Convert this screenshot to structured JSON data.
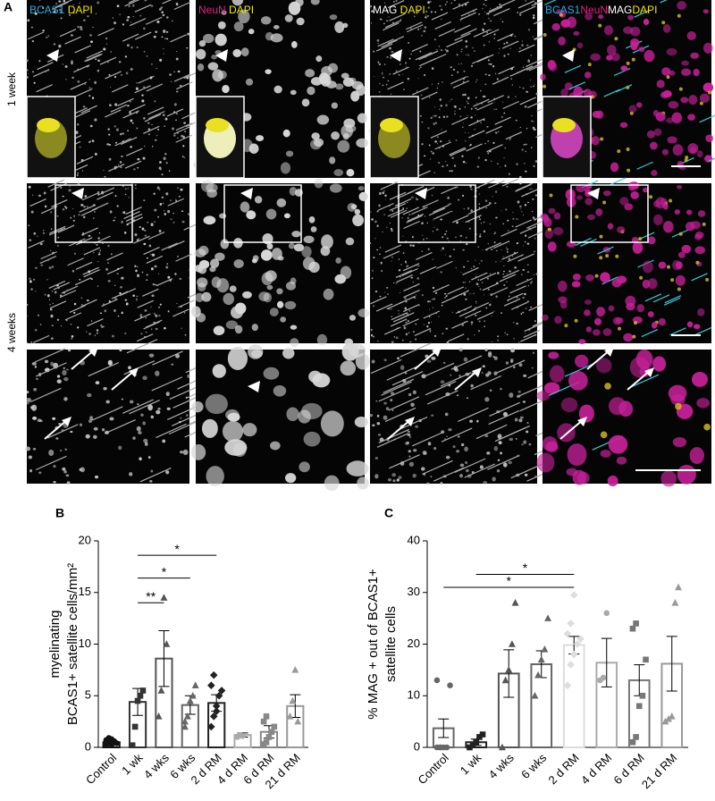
{
  "panel_a": {
    "letter": "A",
    "row_labels": [
      "1 week",
      "4 weeks"
    ],
    "columns": [
      [
        {
          "text": "BCAS1",
          "color": "#29abe2"
        },
        {
          "text": " DAPI",
          "color": "#f2e600"
        }
      ],
      [
        {
          "text": "NeuN",
          "color": "#e0207f"
        },
        {
          "text": " DAPI",
          "color": "#f2e600"
        }
      ],
      [
        {
          "text": "MAG",
          "color": "#ffffff"
        },
        {
          "text": " DAPI",
          "color": "#f2e600"
        }
      ],
      [
        {
          "text": "BCAS1",
          "color": "#29abe2"
        },
        {
          "text": "NeuN",
          "color": "#e0207f"
        },
        {
          "text": "MAG",
          "color": "#ffffff"
        },
        {
          "text": "DAPI",
          "color": "#f2e600"
        }
      ]
    ]
  },
  "chart_data": [
    {
      "type": "bar",
      "letter": "B",
      "ylabel": [
        "myelinating",
        "BCAS1+ satellite cells/mm²"
      ],
      "categories": [
        "Control",
        "1 wk",
        "4 wks",
        "6 wks",
        "2 d RM",
        "4 d RM",
        "6 d RM",
        "21 d RM"
      ],
      "values": [
        0.5,
        4.4,
        8.6,
        4.1,
        4.3,
        1.2,
        1.5,
        4.0
      ],
      "errors": [
        0.2,
        1.3,
        2.7,
        0.9,
        0.8,
        0.2,
        0.6,
        1.1
      ],
      "points": [
        [
          0.3,
          0.5,
          0.8,
          0.6,
          0.4,
          0.7,
          0.9,
          0.2
        ],
        [
          0.2,
          2,
          4.5,
          5,
          5.5
        ],
        [
          3,
          5.5,
          14.5,
          10
        ],
        [
          2,
          3,
          4.5,
          5,
          6,
          2.5
        ],
        [
          2,
          3,
          4,
          5,
          5.5,
          6,
          7,
          3.5
        ],
        [
          1,
          1.2,
          1.1
        ],
        [
          0.3,
          0.5,
          1,
          1.5,
          2,
          2.5,
          3
        ],
        [
          3,
          4.5,
          7.5,
          2.5
        ]
      ],
      "colors": [
        "#111111",
        "#333333",
        "#555555",
        "#666666",
        "#222222",
        "#aaaaaa",
        "#888888",
        "#999999"
      ],
      "ylim": [
        0,
        20
      ],
      "yticks": [
        0,
        5,
        10,
        15,
        20
      ],
      "annotations": [
        {
          "text": "**",
          "from": "1 wk",
          "to": "4 wks",
          "y": 14
        },
        {
          "text": "*",
          "from": "1 wk",
          "to": "6 wks",
          "y": 16.4
        },
        {
          "text": "*",
          "from": "1 wk",
          "to": "2 d RM",
          "y": 18.6
        }
      ]
    },
    {
      "type": "bar",
      "letter": "C",
      "ylabel": [
        "% MAG + out of BCAS1+",
        "satellite cells"
      ],
      "categories": [
        "Control",
        "1 wk",
        "4 wks",
        "6 wks",
        "2 d RM",
        "4 d RM",
        "6 d RM",
        "21 d RM"
      ],
      "values": [
        3.7,
        1.0,
        14.3,
        16.1,
        19.8,
        16.4,
        13,
        16.2
      ],
      "errors": [
        1.8,
        0.6,
        4.6,
        2.6,
        1.7,
        4.7,
        3,
        5.3
      ],
      "points": [
        [
          0,
          0,
          0,
          0,
          12,
          13,
          0
        ],
        [
          0,
          0.5,
          1,
          2,
          2.5
        ],
        [
          0,
          13,
          15,
          20,
          28
        ],
        [
          10,
          14,
          17,
          19,
          25
        ],
        [
          12,
          16,
          18,
          20,
          21,
          22,
          24,
          29.5
        ],
        [
          13,
          13.5,
          26
        ],
        [
          1,
          2,
          8,
          10,
          17,
          23,
          24
        ],
        [
          5,
          5.5,
          6,
          28,
          31
        ]
      ],
      "colors": [
        "#666666",
        "#222222",
        "#555555",
        "#666666",
        "#dddddd",
        "#aaaaaa",
        "#777777",
        "#999999"
      ],
      "ylim": [
        0,
        40
      ],
      "yticks": [
        0,
        10,
        20,
        30,
        40
      ],
      "annotations": [
        {
          "text": "*",
          "from": "1 wk",
          "to": "2 d RM",
          "y": 33.5
        },
        {
          "text": "*",
          "from": "Control",
          "to": "2 d RM",
          "y": 31
        }
      ]
    }
  ]
}
